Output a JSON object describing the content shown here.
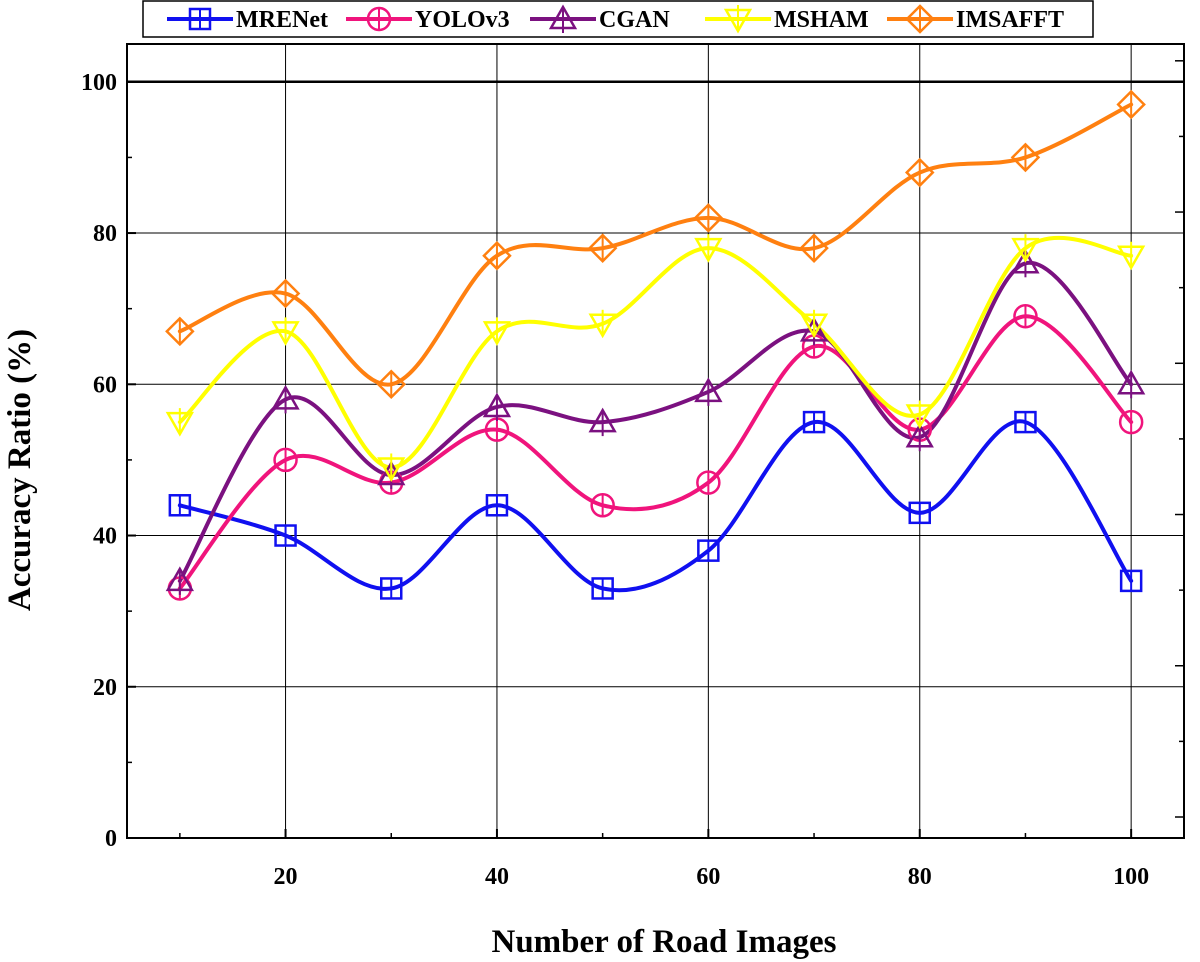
{
  "chart_data": {
    "type": "line",
    "title": "",
    "xlabel": "Number of Road Images",
    "ylabel": "Accuracy Ratio (%)",
    "x": [
      10,
      20,
      30,
      40,
      50,
      60,
      70,
      80,
      90,
      100
    ],
    "xlim": [
      5,
      105
    ],
    "ylim": [
      0,
      105
    ],
    "x_ticks": [
      20,
      40,
      60,
      80,
      100
    ],
    "y_ticks": [
      0,
      20,
      40,
      60,
      80,
      100
    ],
    "grid": true,
    "legend_position": "top",
    "series": [
      {
        "name": "MRENet",
        "color": "#1010f0",
        "marker": "square",
        "values": [
          44,
          40,
          33,
          44,
          33,
          38,
          55,
          43,
          55,
          34
        ]
      },
      {
        "name": "YOLOv3",
        "color": "#f0147c",
        "marker": "circle",
        "values": [
          33,
          50,
          47,
          54,
          44,
          47,
          65,
          54,
          69,
          55
        ]
      },
      {
        "name": "CGAN",
        "color": "#7b1180",
        "marker": "triangle-up",
        "values": [
          34,
          58,
          48,
          57,
          55,
          59,
          67,
          53,
          76,
          60
        ]
      },
      {
        "name": "MSHAM",
        "color": "#ffff00",
        "marker": "triangle-down",
        "values": [
          55,
          67,
          49,
          67,
          68,
          78,
          68,
          56,
          78,
          77
        ]
      },
      {
        "name": "IMSAFFT",
        "color": "#ff8010",
        "marker": "diamond",
        "values": [
          67,
          72,
          60,
          77,
          78,
          82,
          78,
          88,
          90,
          97
        ]
      }
    ]
  }
}
